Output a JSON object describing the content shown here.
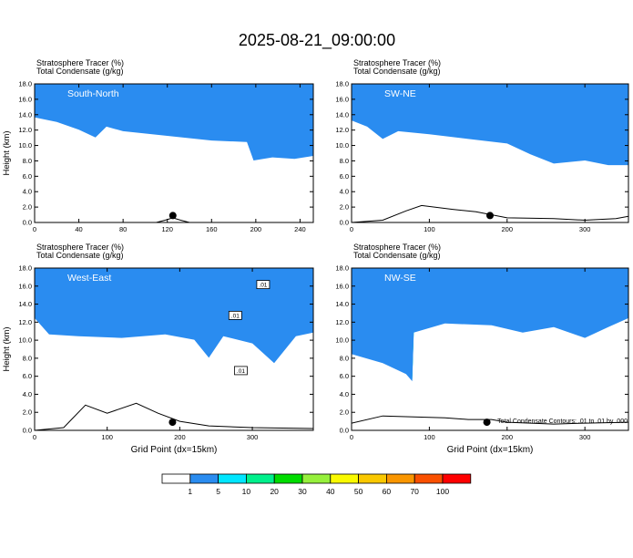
{
  "figure": {
    "title": "2025-08-21_09:00:00",
    "contour_note": "Total Condensate Contours: .01 to .01 by .000",
    "xlabel": "Grid Point (dx=15km)"
  },
  "colorbar": {
    "levels": [
      "1",
      "5",
      "10",
      "20",
      "30",
      "40",
      "50",
      "60",
      "70",
      "100"
    ],
    "colors": [
      "#ffffff",
      "#2a8cf0",
      "#00e6ff",
      "#00f08c",
      "#00dc00",
      "#96f03c",
      "#fafa00",
      "#fac800",
      "#fa9600",
      "#fa5000",
      "#ff0000"
    ]
  },
  "chart_data": [
    {
      "type": "heatmap",
      "panel": "top-left",
      "label": "South-North",
      "header1": "Stratosphere Tracer   (%)",
      "header2": "Total Condensate   (g/kg)",
      "ylabel": "Height (km)",
      "xlabel": "",
      "xlim": [
        0,
        252
      ],
      "xticks": [
        0,
        40,
        80,
        120,
        160,
        200,
        240
      ],
      "ylim": [
        0,
        18
      ],
      "yticks": [
        "0.0",
        "2.0",
        "4.0",
        "6.0",
        "8.0",
        "10.0",
        "12.0",
        "14.0",
        "16.0",
        "18.0"
      ],
      "tropopause_km": [
        [
          0,
          15.8
        ],
        [
          20,
          15.2
        ],
        [
          40,
          14.2
        ],
        [
          55,
          13.2
        ],
        [
          65,
          14.6
        ],
        [
          80,
          14.0
        ],
        [
          120,
          13.4
        ],
        [
          160,
          12.8
        ],
        [
          192,
          12.6
        ],
        [
          198,
          10.2
        ],
        [
          215,
          10.6
        ],
        [
          235,
          10.4
        ],
        [
          252,
          10.8
        ]
      ],
      "terrain_km": [
        [
          0,
          0
        ],
        [
          110,
          0
        ],
        [
          118,
          0.3
        ],
        [
          125,
          0.6
        ],
        [
          132,
          0.3
        ],
        [
          140,
          0
        ],
        [
          252,
          0
        ]
      ],
      "marker_x": 125
    },
    {
      "type": "heatmap",
      "panel": "top-right",
      "label": "SW-NE",
      "header1": "Stratosphere Tracer   (%)",
      "header2": "Total Condensate   (g/kg)",
      "ylabel": "",
      "xlabel": "",
      "xlim": [
        0,
        356
      ],
      "xticks": [
        0,
        100,
        200,
        300
      ],
      "ylim": [
        0,
        18
      ],
      "yticks": [
        "0.0",
        "2.0",
        "4.0",
        "6.0",
        "8.0",
        "10.0",
        "12.0",
        "14.0",
        "16.0",
        "18.0"
      ],
      "tropopause_km": [
        [
          0,
          15.4
        ],
        [
          20,
          14.6
        ],
        [
          40,
          13.0
        ],
        [
          60,
          14.0
        ],
        [
          100,
          13.6
        ],
        [
          150,
          13.0
        ],
        [
          200,
          12.4
        ],
        [
          230,
          11.0
        ],
        [
          260,
          9.8
        ],
        [
          300,
          10.2
        ],
        [
          330,
          9.6
        ],
        [
          356,
          9.6
        ]
      ],
      "terrain_km": [
        [
          0,
          0
        ],
        [
          40,
          0.3
        ],
        [
          70,
          1.5
        ],
        [
          90,
          2.2
        ],
        [
          130,
          1.7
        ],
        [
          160,
          1.4
        ],
        [
          200,
          0.6
        ],
        [
          260,
          0.5
        ],
        [
          300,
          0.3
        ],
        [
          340,
          0.5
        ],
        [
          356,
          0.8
        ]
      ],
      "marker_x": 178
    },
    {
      "type": "heatmap",
      "panel": "bottom-left",
      "label": "West-East",
      "header1": "Stratosphere Tracer   (%)",
      "header2": "Total Condensate   (g/kg)",
      "ylabel": "Height (km)",
      "xlabel": "Grid Point (dx=15km)",
      "xlim": [
        0,
        384
      ],
      "xticks": [
        0,
        100,
        200,
        300
      ],
      "ylim": [
        0,
        18
      ],
      "yticks": [
        "0.0",
        "2.0",
        "4.0",
        "6.0",
        "8.0",
        "10.0",
        "12.0",
        "14.0",
        "16.0",
        "18.0"
      ],
      "tropopause_km": [
        [
          0,
          14.6
        ],
        [
          20,
          12.8
        ],
        [
          60,
          12.6
        ],
        [
          120,
          12.4
        ],
        [
          180,
          12.8
        ],
        [
          220,
          12.2
        ],
        [
          240,
          10.2
        ],
        [
          260,
          12.6
        ],
        [
          300,
          11.8
        ],
        [
          330,
          9.6
        ],
        [
          360,
          12.6
        ],
        [
          384,
          13.0
        ]
      ],
      "terrain_km": [
        [
          0,
          0
        ],
        [
          40,
          0.3
        ],
        [
          70,
          2.8
        ],
        [
          100,
          1.9
        ],
        [
          140,
          3.0
        ],
        [
          170,
          1.9
        ],
        [
          200,
          1.0
        ],
        [
          240,
          0.5
        ],
        [
          300,
          0.3
        ],
        [
          384,
          0.2
        ]
      ],
      "marker_x": 190,
      "contour_labels": [
        ".01",
        ".01",
        ".01"
      ]
    },
    {
      "type": "heatmap",
      "panel": "bottom-right",
      "label": "NW-SE",
      "header1": "Stratosphere Tracer   (%)",
      "header2": "Total Condensate   (g/kg)",
      "ylabel": "",
      "xlabel": "Grid Point (dx=15km)",
      "xlim": [
        0,
        356
      ],
      "xticks": [
        0,
        100,
        200,
        300
      ],
      "ylim": [
        0,
        18
      ],
      "yticks": [
        "0.0",
        "2.0",
        "4.0",
        "6.0",
        "8.0",
        "10.0",
        "12.0",
        "14.0",
        "16.0",
        "18.0"
      ],
      "tropopause_km": [
        [
          0,
          10.6
        ],
        [
          40,
          9.6
        ],
        [
          70,
          8.4
        ],
        [
          78,
          7.6
        ],
        [
          80,
          13.0
        ],
        [
          120,
          14.0
        ],
        [
          180,
          13.8
        ],
        [
          220,
          13.0
        ],
        [
          260,
          13.6
        ],
        [
          300,
          12.4
        ],
        [
          330,
          13.6
        ],
        [
          356,
          14.6
        ]
      ],
      "terrain_km": [
        [
          0,
          0.8
        ],
        [
          40,
          1.6
        ],
        [
          80,
          1.5
        ],
        [
          120,
          1.4
        ],
        [
          150,
          1.2
        ],
        [
          180,
          1.2
        ],
        [
          200,
          0.9
        ],
        [
          260,
          0.7
        ],
        [
          300,
          0.8
        ],
        [
          356,
          0.9
        ]
      ],
      "marker_x": 174
    }
  ]
}
